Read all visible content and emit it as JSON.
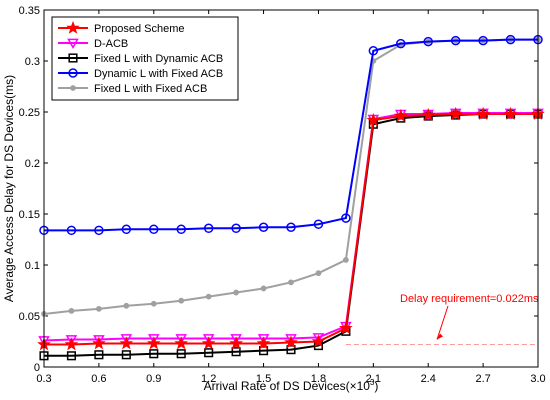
{
  "chart_data": {
    "type": "line",
    "xlabel": "Arrival Rate of DS Devices(×10",
    "xlabel_sup": "3",
    "xlabel_suffix": ")",
    "ylabel": "Average Access Delay for DS Devices(ms)",
    "xlim": [
      0.3,
      3.0
    ],
    "ylim": [
      0,
      0.35
    ],
    "x_ticks": [
      "0.3",
      "0.6",
      "0.9",
      "1.2",
      "1.5",
      "1.8",
      "2.1",
      "2.4",
      "2.7",
      "3.0"
    ],
    "x_tick_values": [
      0.3,
      0.6,
      0.9,
      1.2,
      1.5,
      1.8,
      2.1,
      2.4,
      2.7,
      3.0
    ],
    "y_ticks": [
      "0",
      "0.05",
      "0.1",
      "0.15",
      "0.2",
      "0.25",
      "0.3",
      "0.35"
    ],
    "y_tick_values": [
      0,
      0.05,
      0.1,
      0.15,
      0.2,
      0.25,
      0.3,
      0.35
    ],
    "grid": false,
    "legend_position": "top-left",
    "x": [
      0.3,
      0.45,
      0.6,
      0.75,
      0.9,
      1.05,
      1.2,
      1.35,
      1.5,
      1.65,
      1.8,
      1.95,
      2.1,
      2.25,
      2.4,
      2.55,
      2.7,
      2.85,
      3.0
    ],
    "series": [
      {
        "name": "Proposed Scheme",
        "color": "#ff0000",
        "marker": "star",
        "values": [
          0.022,
          0.022,
          0.023,
          0.023,
          0.023,
          0.023,
          0.023,
          0.023,
          0.023,
          0.024,
          0.025,
          0.038,
          0.242,
          0.246,
          0.247,
          0.248,
          0.248,
          0.248,
          0.248
        ]
      },
      {
        "name": "D-ACB",
        "color": "#ff00ff",
        "marker": "triangle-down",
        "values": [
          0.026,
          0.027,
          0.027,
          0.028,
          0.028,
          0.028,
          0.028,
          0.028,
          0.028,
          0.028,
          0.029,
          0.04,
          0.243,
          0.248,
          0.248,
          0.249,
          0.249,
          0.249,
          0.249
        ]
      },
      {
        "name": "Fixed L with Dynamic ACB",
        "color": "#000000",
        "marker": "square",
        "values": [
          0.011,
          0.011,
          0.012,
          0.012,
          0.013,
          0.013,
          0.014,
          0.015,
          0.016,
          0.017,
          0.021,
          0.035,
          0.238,
          0.244,
          0.246,
          0.247,
          0.248,
          0.248,
          0.248
        ]
      },
      {
        "name": "Dynamic L with Fixed ACB",
        "color": "#0000ff",
        "marker": "circle",
        "values": [
          0.134,
          0.134,
          0.134,
          0.135,
          0.135,
          0.135,
          0.136,
          0.136,
          0.137,
          0.137,
          0.14,
          0.146,
          0.31,
          0.317,
          0.319,
          0.32,
          0.32,
          0.321,
          0.321
        ]
      },
      {
        "name": "Fixed L with Fixed ACB",
        "color": "#a0a0a0",
        "marker": "dot",
        "values": [
          0.052,
          0.055,
          0.057,
          0.06,
          0.062,
          0.065,
          0.069,
          0.073,
          0.077,
          0.083,
          0.092,
          0.105,
          0.3,
          0.316,
          0.319,
          0.32,
          0.32,
          0.321,
          0.321
        ]
      }
    ],
    "reference_line": {
      "label": "Delay requirement=0.022ms",
      "value": 0.022,
      "x_range": [
        1.95,
        3.0
      ],
      "color": "#ff9999",
      "label_color": "#ff0000"
    }
  }
}
